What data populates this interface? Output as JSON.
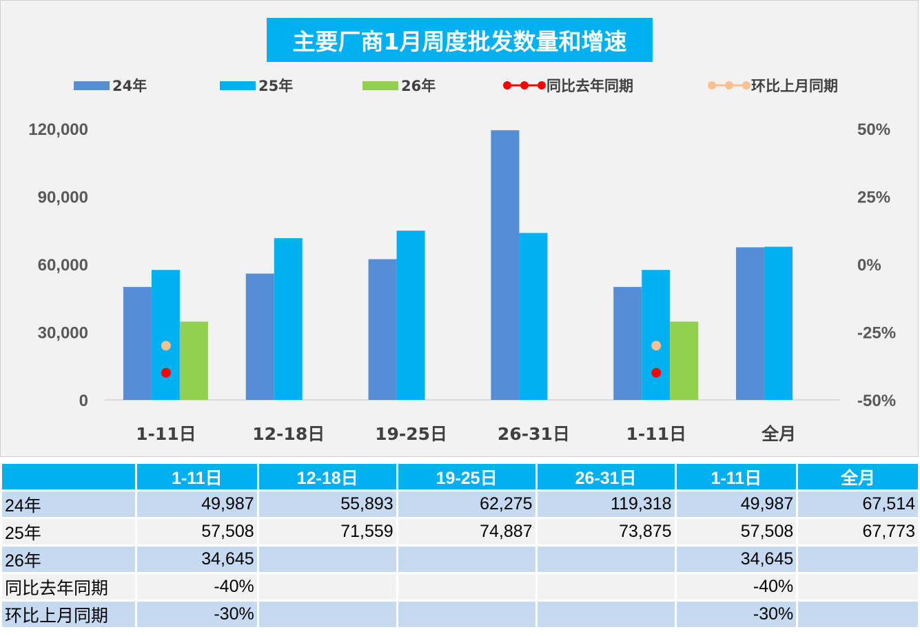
{
  "chart_data": {
    "type": "bar",
    "title": "主要厂商1月周度批发数量和增速",
    "categories": [
      "1-11日",
      "12-18日",
      "19-25日",
      "26-31日",
      "1-11日",
      "全月"
    ],
    "series": [
      {
        "name": "24年",
        "type": "bar",
        "color": "#558ed5",
        "values": [
          49987,
          55893,
          62275,
          119318,
          49987,
          67514
        ]
      },
      {
        "name": "25年",
        "type": "bar",
        "color": "#00b0f0",
        "values": [
          57508,
          71559,
          74887,
          73875,
          57508,
          67773
        ]
      },
      {
        "name": "26年",
        "type": "bar",
        "color": "#92d050",
        "values": [
          34645,
          null,
          null,
          null,
          34645,
          null
        ]
      },
      {
        "name": "同比去年同期",
        "type": "line",
        "axis": "right",
        "color": "#ff0000",
        "values": [
          -0.4,
          null,
          null,
          null,
          -0.4,
          null
        ]
      },
      {
        "name": "环比上月同期",
        "type": "line",
        "axis": "right",
        "color": "#fac090",
        "values": [
          -0.3,
          null,
          null,
          null,
          -0.3,
          null
        ]
      }
    ],
    "y_left": {
      "range": [
        0,
        120000
      ],
      "ticks": [
        "0",
        "30,000",
        "60,000",
        "90,000",
        "120,000"
      ]
    },
    "y_right": {
      "range": [
        -0.5,
        0.5
      ],
      "ticks": [
        "-50%",
        "-25%",
        "0%",
        "25%",
        "50%"
      ]
    },
    "legend_position": "top",
    "grid": false
  },
  "table": {
    "header": [
      "",
      "1-11日",
      "12-18日",
      "19-25日",
      "26-31日",
      "1-11日",
      "全月"
    ],
    "rows": [
      [
        "24年",
        "49,987",
        "55,893",
        "62,275",
        "119,318",
        "49,987",
        "67,514"
      ],
      [
        "25年",
        "57,508",
        "71,559",
        "74,887",
        "73,875",
        "57,508",
        "67,773"
      ],
      [
        "26年",
        "34,645",
        "",
        "",
        "",
        "34,645",
        ""
      ],
      [
        "同比去年同期",
        "-40%",
        "",
        "",
        "",
        "-40%",
        ""
      ],
      [
        "环比上月同期",
        "-30%",
        "",
        "",
        "",
        "-30%",
        ""
      ]
    ]
  }
}
